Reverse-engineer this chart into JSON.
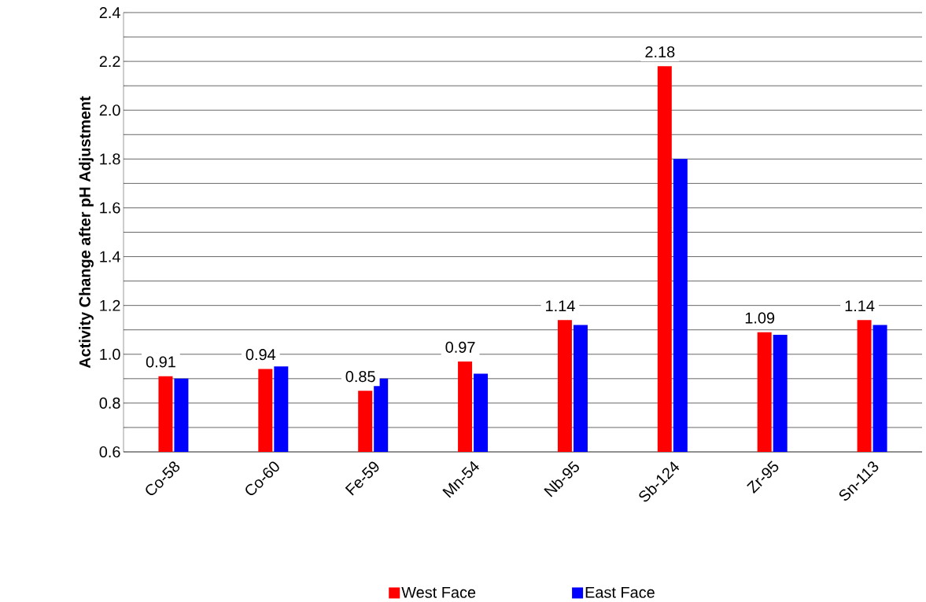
{
  "chart_data": {
    "type": "bar",
    "ylabel": "Activity Change after pH Adjustment",
    "categories": [
      "Co-58",
      "Co-60",
      "Fe-59",
      "Mn-54",
      "Nb-95",
      "Sb-124",
      "Zr-95",
      "Sn-113"
    ],
    "series": [
      {
        "name": "West Face",
        "color": "#ff0000",
        "values": [
          0.91,
          0.94,
          0.85,
          0.97,
          1.14,
          2.18,
          1.09,
          1.14
        ],
        "value_labels": [
          "0.91",
          "0.94",
          "0.85",
          "0.97",
          "1.14",
          "2.18",
          "1.09",
          "1.14"
        ]
      },
      {
        "name": "East Face",
        "color": "#0000ff",
        "values": [
          0.9,
          0.95,
          0.9,
          0.92,
          1.12,
          1.8,
          1.08,
          1.12
        ]
      }
    ],
    "ylim": [
      0.6,
      2.4
    ],
    "yticks": [
      {
        "value": 0.6,
        "label": "0.6"
      },
      {
        "value": 0.7,
        "label": null
      },
      {
        "value": 0.8,
        "label": "0.8"
      },
      {
        "value": 0.9,
        "label": null
      },
      {
        "value": 1.0,
        "label": "1.0"
      },
      {
        "value": 1.1,
        "label": null
      },
      {
        "value": 1.2,
        "label": "1.2"
      },
      {
        "value": 1.3,
        "label": null
      },
      {
        "value": 1.4,
        "label": "1.4"
      },
      {
        "value": 1.5,
        "label": null
      },
      {
        "value": 1.6,
        "label": "1.6"
      },
      {
        "value": 1.7,
        "label": null
      },
      {
        "value": 1.8,
        "label": "1.8"
      },
      {
        "value": 1.9,
        "label": null
      },
      {
        "value": 2.0,
        "label": "2.0"
      },
      {
        "value": 2.1,
        "label": null
      },
      {
        "value": 2.2,
        "label": "2.2"
      },
      {
        "value": 2.3,
        "label": null
      },
      {
        "value": 2.4,
        "label": "2.4"
      }
    ],
    "grid": "y",
    "legend": "bottom"
  }
}
